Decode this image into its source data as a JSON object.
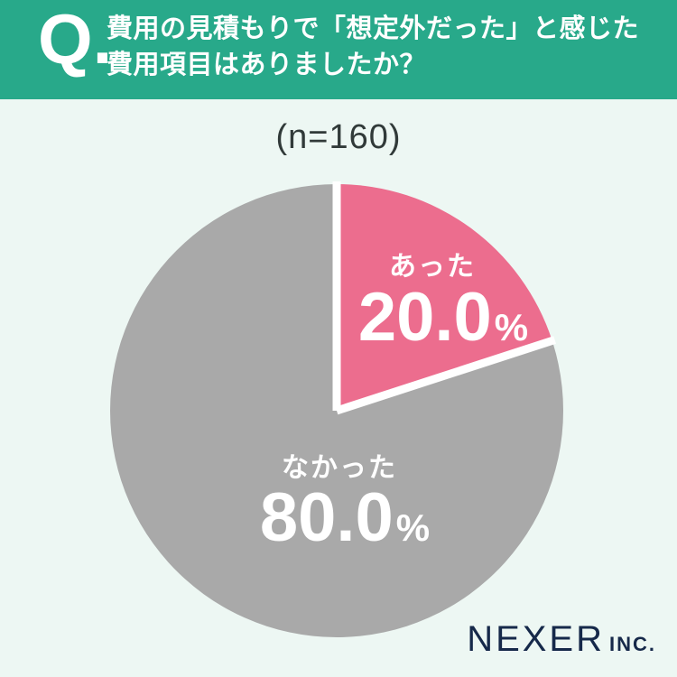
{
  "colors": {
    "header_bg": "#28A98A",
    "page_bg": "#EDF7F3",
    "pink": "#EC6D8E",
    "gray": "#A9A9A9",
    "navy": "#16294A",
    "dark_text": "#313A39",
    "divider": "#FFFFFF"
  },
  "header": {
    "q_mark": "Q.",
    "question_line1": "費用の見積もりで「想定外だった」と感じた",
    "question_line2": "費用項目はありましたか？"
  },
  "sample_size_label": "(n=160)",
  "chart_data": {
    "type": "pie",
    "title": "費用の見積もりで「想定外だった」と感じた費用項目はありましたか？",
    "sample_size": 160,
    "categories": [
      "あった",
      "なかった"
    ],
    "values": [
      20.0,
      80.0
    ],
    "unit": "%",
    "colors": [
      "#EC6D8E",
      "#A9A9A9"
    ],
    "start_angle_deg": 0,
    "direction": "clockwise",
    "legend_position": "none",
    "labels": [
      {
        "name": "あった",
        "value_label": "20.0",
        "unit": "%"
      },
      {
        "name": "なかった",
        "value_label": "80.0",
        "unit": "%"
      }
    ]
  },
  "footer": {
    "brand": "NEXER",
    "brand_suffix": "INC."
  }
}
